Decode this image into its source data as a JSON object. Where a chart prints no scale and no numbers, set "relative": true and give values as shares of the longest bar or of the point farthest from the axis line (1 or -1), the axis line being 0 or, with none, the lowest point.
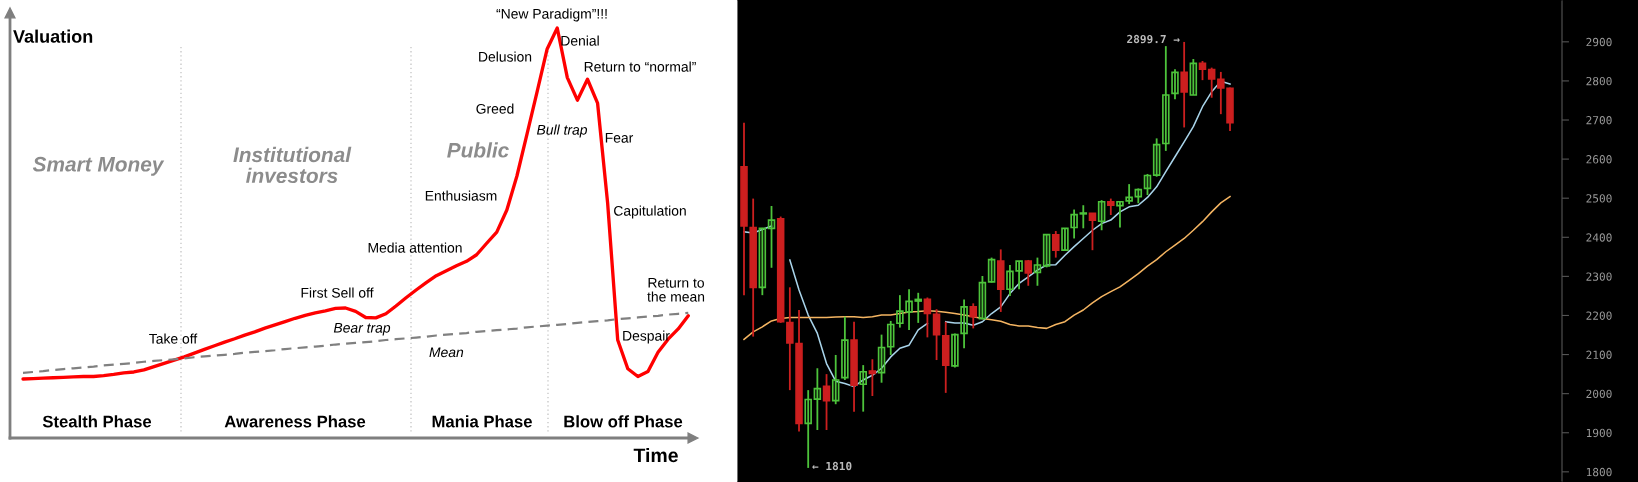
{
  "chart_data": [
    {
      "type": "line",
      "relative": true,
      "xlabel": "Time",
      "ylabel": "Valuation",
      "tick_labels": false,
      "categories": [
        null,
        null,
        null,
        null,
        null,
        null,
        null,
        null,
        null,
        null,
        null,
        null,
        null,
        null,
        null,
        null,
        null,
        null,
        null,
        null,
        null,
        null,
        null,
        null,
        null,
        null,
        null,
        null,
        null,
        null,
        null,
        null,
        null,
        null,
        null,
        null,
        null,
        null,
        null,
        null,
        null,
        null,
        null,
        null,
        null,
        null,
        null,
        null,
        null,
        null,
        null,
        null,
        null,
        null,
        null,
        null,
        null,
        null,
        null,
        null,
        null,
        null,
        null,
        null,
        null,
        null,
        null
      ],
      "series": [
        {
          "color": "#ff0000",
          "line_style": "solid",
          "values": [
            0.144,
            0.145,
            0.146,
            0.147,
            0.148,
            0.149,
            0.15,
            0.15,
            0.152,
            0.155,
            0.159,
            0.161,
            0.166,
            0.174,
            0.182,
            0.19,
            0.198,
            0.207,
            0.216,
            0.225,
            0.234,
            0.242,
            0.251,
            0.259,
            0.268,
            0.276,
            0.284,
            0.292,
            0.299,
            0.305,
            0.31,
            0.316,
            0.317,
            0.309,
            0.294,
            0.293,
            0.303,
            0.322,
            0.342,
            0.361,
            0.379,
            0.396,
            0.408,
            0.42,
            0.431,
            0.447,
            0.475,
            0.502,
            0.556,
            0.639,
            0.741,
            0.844,
            0.949,
            1.0,
            0.879,
            0.824,
            0.875,
            0.817,
            0.573,
            0.239,
            0.169,
            0.15,
            0.162,
            0.209,
            0.241,
            0.266,
            0.298
          ]
        },
        {
          "name": "Mean",
          "color": "#808080",
          "line_style": "dashed",
          "values": [
            0.159,
            0.161,
            0.163,
            0.166,
            0.168,
            0.17,
            0.172,
            0.174,
            0.177,
            0.179,
            0.181,
            0.183,
            0.186,
            0.188,
            0.19,
            0.192,
            0.194,
            0.197,
            0.199,
            0.201,
            0.203,
            0.205,
            0.208,
            0.21,
            0.212,
            0.214,
            0.217,
            0.219,
            0.221,
            0.223,
            0.225,
            0.228,
            0.23,
            0.232,
            0.234,
            0.236,
            0.239,
            0.241,
            0.243,
            0.245,
            0.247,
            0.25,
            0.252,
            0.254,
            0.256,
            0.259,
            0.261,
            0.263,
            0.265,
            0.267,
            0.27,
            0.272,
            0.274,
            0.276,
            0.278,
            0.281,
            0.283,
            0.285,
            0.287,
            0.29,
            0.292,
            0.294,
            0.296,
            0.298,
            0.301,
            0.303,
            0.305
          ]
        }
      ],
      "annotations": [
        "Smart Money",
        "Institutional\ninvestors",
        "Public",
        "Take off",
        "First Sell off",
        "Bear trap",
        "Media attention",
        "Enthusiasm",
        "Greed",
        "Delusion",
        "“New Paradigm”!!!",
        "Denial",
        "Return to “normal”",
        "Bull trap",
        "Fear",
        "Capitulation",
        "Despair",
        "Return to\nthe mean",
        "Stealth Phase",
        "Awareness Phase",
        "Mania Phase",
        "Blow off Phase"
      ]
    },
    {
      "type": "candlestick",
      "tick_labels": "y",
      "ylim": [
        1774,
        3007
      ],
      "yticks": [
        1800,
        1900,
        2000,
        2100,
        2200,
        2300,
        2400,
        2500,
        2600,
        2700,
        2800,
        2900
      ],
      "categories": [
        null,
        null,
        null,
        null,
        null,
        null,
        null,
        null,
        null,
        null,
        null,
        null,
        null,
        null,
        null,
        null,
        null,
        null,
        null,
        null,
        null,
        null,
        null,
        null,
        null,
        null,
        null,
        null,
        null,
        null,
        null,
        null,
        null,
        null,
        null,
        null,
        null,
        null,
        null,
        null,
        null,
        null,
        null,
        null,
        null,
        null,
        null,
        null,
        null,
        null,
        null,
        null,
        null,
        null
      ],
      "ohlc": [
        [
          2580,
          2693,
          2252,
          2429
        ],
        [
          2425,
          2499,
          2146,
          2272
        ],
        [
          2272,
          2424,
          2252,
          2423
        ],
        [
          2423,
          2480,
          2322,
          2444
        ],
        [
          2447,
          2453,
          2181,
          2184
        ],
        [
          2182,
          2272,
          2009,
          2130
        ],
        [
          2128,
          2214,
          1903,
          1924
        ],
        [
          1924,
          2009,
          1810,
          1985
        ],
        [
          1986,
          2065,
          1907,
          2013
        ],
        [
          2019,
          2050,
          1907,
          1982
        ],
        [
          1982,
          2099,
          1973,
          2035
        ],
        [
          2041,
          2197,
          2035,
          2137
        ],
        [
          2137,
          2184,
          1954,
          2022
        ],
        [
          2024,
          2073,
          1954,
          2056
        ],
        [
          2058,
          2088,
          1994,
          2052
        ],
        [
          2054,
          2151,
          2028,
          2118
        ],
        [
          2120,
          2186,
          2099,
          2177
        ],
        [
          2180,
          2252,
          2169,
          2211
        ],
        [
          2209,
          2267,
          2163,
          2236
        ],
        [
          2237,
          2258,
          2181,
          2241
        ],
        [
          2241,
          2246,
          2144,
          2205
        ],
        [
          2203,
          2216,
          2086,
          2151
        ],
        [
          2148,
          2184,
          2002,
          2073
        ],
        [
          2071,
          2154,
          2067,
          2151
        ],
        [
          2154,
          2241,
          2116,
          2222
        ],
        [
          2222,
          2231,
          2167,
          2197
        ],
        [
          2192,
          2301,
          2192,
          2284
        ],
        [
          2286,
          2348,
          2284,
          2343
        ],
        [
          2339,
          2369,
          2209,
          2267
        ],
        [
          2267,
          2329,
          2250,
          2313
        ],
        [
          2314,
          2339,
          2267,
          2339
        ],
        [
          2339,
          2342,
          2276,
          2309
        ],
        [
          2310,
          2348,
          2276,
          2329
        ],
        [
          2327,
          2407,
          2323,
          2407
        ],
        [
          2406,
          2416,
          2348,
          2367
        ],
        [
          2367,
          2423,
          2365,
          2423
        ],
        [
          2425,
          2471,
          2397,
          2458
        ],
        [
          2460,
          2482,
          2423,
          2462
        ],
        [
          2461,
          2461,
          2367,
          2444
        ],
        [
          2441,
          2495,
          2418,
          2491
        ],
        [
          2491,
          2499,
          2457,
          2482
        ],
        [
          2481,
          2491,
          2425,
          2491
        ],
        [
          2493,
          2536,
          2485,
          2502
        ],
        [
          2504,
          2525,
          2487,
          2522
        ],
        [
          2525,
          2562,
          2508,
          2558
        ],
        [
          2559,
          2653,
          2555,
          2637
        ],
        [
          2640,
          2889,
          2621,
          2764
        ],
        [
          2768,
          2830,
          2753,
          2822
        ],
        [
          2822,
          2899.7,
          2681,
          2772
        ],
        [
          2764,
          2856,
          2764,
          2845
        ],
        [
          2845,
          2851,
          2802,
          2830
        ],
        [
          2829,
          2834,
          2757,
          2805
        ],
        [
          2804,
          2823,
          2715,
          2782
        ],
        [
          2781,
          2783,
          2672,
          2693
        ]
      ],
      "colors": [
        "#cc1f1f",
        "#cc1f1f",
        "#4dc33b",
        "#4dc33b",
        "#cc1f1f",
        "#cc1f1f",
        "#cc1f1f",
        "#4dc33b",
        "#4dc33b",
        "#cc1f1f",
        "#4dc33b",
        "#4dc33b",
        "#cc1f1f",
        "#4dc33b",
        "#cc1f1f",
        "#4dc33b",
        "#4dc33b",
        "#4dc33b",
        "#4dc33b",
        "#4dc33b",
        "#cc1f1f",
        "#cc1f1f",
        "#cc1f1f",
        "#4dc33b",
        "#4dc33b",
        "#cc1f1f",
        "#4dc33b",
        "#4dc33b",
        "#cc1f1f",
        "#4dc33b",
        "#4dc33b",
        "#cc1f1f",
        "#4dc33b",
        "#4dc33b",
        "#cc1f1f",
        "#4dc33b",
        "#4dc33b",
        "#4dc33b",
        "#cc1f1f",
        "#4dc33b",
        "#cc1f1f",
        "#4dc33b",
        "#4dc33b",
        "#4dc33b",
        "#4dc33b",
        "#4dc33b",
        "#4dc33b",
        "#4dc33b",
        "#cc1f1f",
        "#4dc33b",
        "#cc1f1f",
        "#cc1f1f",
        "#cc1f1f",
        "#cc1f1f"
      ],
      "series": [
        {
          "type": "line",
          "color": "#a9d4ea",
          "values": [
            2414,
            2411,
            2420,
            2429,
            null,
            2342,
            2265,
            2201,
            2154,
            2077,
            2032,
            2026,
            2018,
            2035,
            2047,
            2065,
            2094,
            2116,
            2124,
            2163,
            2180,
            null,
            2184,
            2181,
            2181,
            2175,
            2184,
            2205,
            2222,
            2256,
            2282,
            2299,
            2316,
            2329,
            2330,
            2354,
            2376,
            2397,
            2418,
            2435,
            2444,
            2465,
            2478,
            2482,
            2502,
            2529,
            2568,
            2606,
            2644,
            2683,
            2734,
            2772,
            2799,
            2792
          ]
        },
        {
          "type": "line",
          "color": "#f5b562",
          "values": [
            2139,
            2158,
            2171,
            2186,
            2192,
            2195,
            2195,
            2195,
            2195,
            2195,
            2196,
            2197,
            2197,
            2195,
            2197,
            2201,
            2201,
            2205,
            2209,
            2210,
            2212,
            2211,
            2208,
            2205,
            2201,
            2197,
            2192,
            2189,
            2185,
            2177,
            2173,
            2173,
            2169,
            2167,
            2177,
            2184,
            2201,
            2214,
            2232,
            2248,
            2261,
            2273,
            2290,
            2307,
            2326,
            2343,
            2363,
            2380,
            2397,
            2418,
            2440,
            2465,
            2488,
            2504
          ]
        }
      ],
      "annotations": [
        "← 1810",
        "2899.7 →"
      ]
    }
  ]
}
